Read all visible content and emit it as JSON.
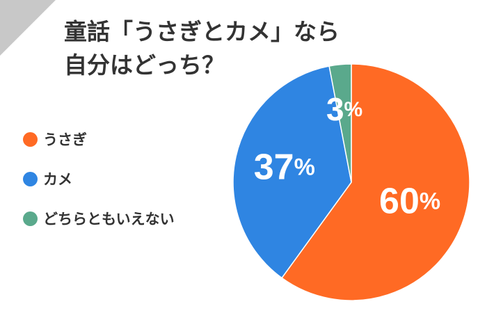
{
  "title_line1": "童話「うさぎとカメ」なら",
  "title_line2": "自分はどっち？",
  "corner_color": "#c8c8c8",
  "chart_data": {
    "type": "pie",
    "title": "童話「うさぎとカメ」なら自分はどっち？",
    "series": [
      {
        "name": "うさぎ",
        "value": 60,
        "label": "60",
        "unit": "%",
        "color": "#ff6a24"
      },
      {
        "name": "カメ",
        "value": 37,
        "label": "37",
        "unit": "%",
        "color": "#2f85e2"
      },
      {
        "name": "どちらともいえない",
        "value": 3,
        "label": "3",
        "unit": "%",
        "color": "#5aa98c"
      }
    ],
    "start": "top",
    "direction": "clockwise",
    "legend_position": "left"
  }
}
